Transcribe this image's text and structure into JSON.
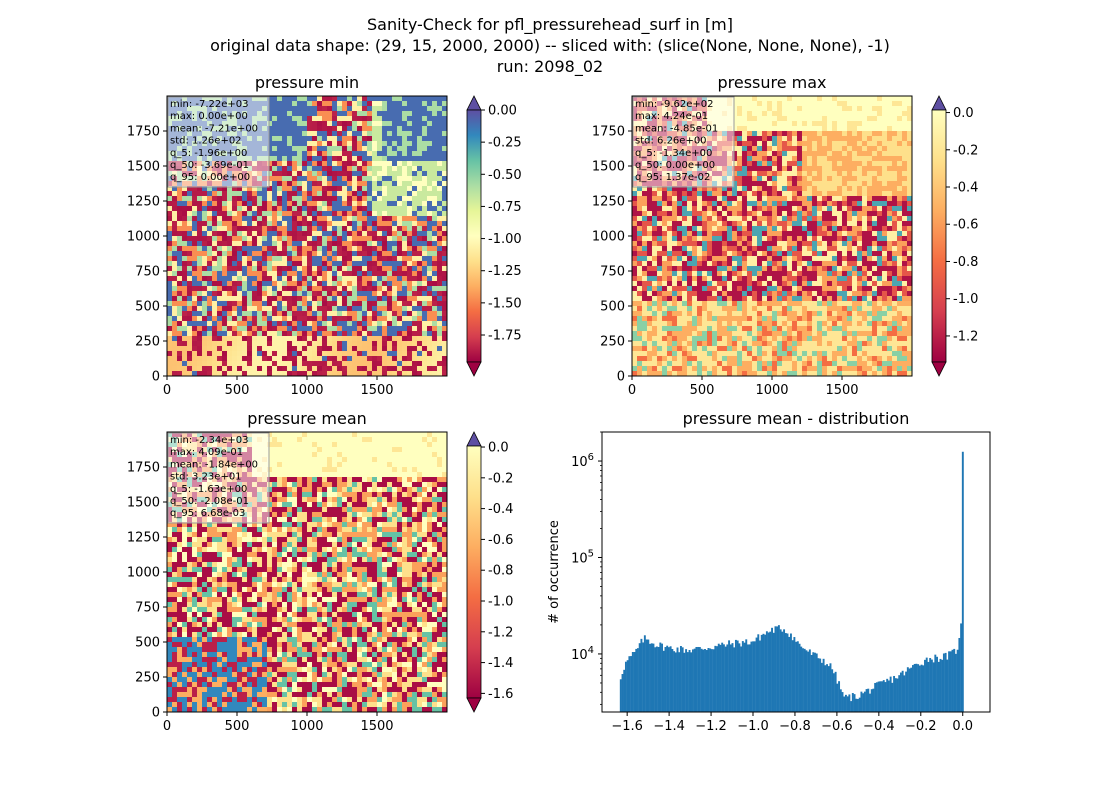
{
  "figure": {
    "title_lines": [
      "Sanity-Check for pfl_pressurehead_surf in [m]",
      "original data shape: (29, 15, 2000, 2000) -- sliced with: (slice(None, None, None), -1)",
      "run: 2098_02"
    ]
  },
  "chart_data": [
    {
      "type": "heatmap",
      "title": "pressure min",
      "xlim": [
        0,
        2000
      ],
      "ylim": [
        0,
        2000
      ],
      "xticks": [
        0,
        500,
        1000,
        1500
      ],
      "yticks": [
        0,
        250,
        500,
        750,
        1000,
        1250,
        1500,
        1750
      ],
      "colorbar": {
        "ticks": [
          "0.00",
          "-0.25",
          "-0.50",
          "-0.75",
          "-1.00",
          "-1.25",
          "-1.50",
          "-1.75"
        ],
        "range": [
          -1.96,
          0.0
        ],
        "extend": "both",
        "cmap": "Spectral"
      },
      "stats": [
        "min: -7.22e+03",
        "max: 0.00e+00",
        "mean: -7.21e+00",
        "std: 1.26e+02",
        "q_5: -1.96e+00",
        "q_50: -3.69e-01",
        "q_95: 0.00e+00"
      ]
    },
    {
      "type": "heatmap",
      "title": "pressure max",
      "xlim": [
        0,
        2000
      ],
      "ylim": [
        0,
        2000
      ],
      "xticks": [
        0,
        500,
        1000,
        1500
      ],
      "yticks": [
        0,
        250,
        500,
        750,
        1000,
        1250,
        1500,
        1750
      ],
      "colorbar": {
        "ticks": [
          "0.0",
          "-0.2",
          "-0.4",
          "-0.6",
          "-0.8",
          "-1.0",
          "-1.2"
        ],
        "range": [
          -1.34,
          0.0137
        ],
        "extend": "both",
        "cmap": "Spectral"
      },
      "stats": [
        "min: -9.62e+02",
        "max: 4.24e-01",
        "mean: -4.85e-01",
        "std: 6.26e+00",
        "q_5: -1.34e+00",
        "q_50: 0.00e+00",
        "q_95: 1.37e-02"
      ]
    },
    {
      "type": "heatmap",
      "title": "pressure mean",
      "xlim": [
        0,
        2000
      ],
      "ylim": [
        0,
        2000
      ],
      "xticks": [
        0,
        500,
        1000,
        1500
      ],
      "yticks": [
        0,
        250,
        500,
        750,
        1000,
        1250,
        1500,
        1750
      ],
      "colorbar": {
        "ticks": [
          "0.0",
          "-0.2",
          "-0.4",
          "-0.6",
          "-0.8",
          "-1.0",
          "-1.2",
          "-1.4",
          "-1.6"
        ],
        "range": [
          -1.63,
          0.00668
        ],
        "extend": "both",
        "cmap": "Spectral"
      },
      "stats": [
        "min: -2.34e+03",
        "max: 4.09e-01",
        "mean: -1.84e+00",
        "std: 3.23e+01",
        "q_5: -1.63e+00",
        "q_50: -2.08e-01",
        "q_95: 6.68e-03"
      ]
    },
    {
      "type": "bar",
      "title": "pressure mean - distribution",
      "ylabel": "# of occurrence",
      "xlabel": "",
      "yscale": "log",
      "xlim": [
        -1.72,
        0.13
      ],
      "ylim": [
        2500,
        2000000
      ],
      "xticks": [
        "-1.6",
        "-1.4",
        "-1.2",
        "-1.0",
        "-0.8",
        "-0.6",
        "-0.4",
        "-0.2",
        "0.0"
      ],
      "yticks": [
        "10^4",
        "10^5",
        "10^6"
      ],
      "color": "#1f77b4",
      "profile": [
        [
          -1.635,
          5300
        ],
        [
          -1.62,
          7000
        ],
        [
          -1.6,
          8500
        ],
        [
          -1.56,
          10500
        ],
        [
          -1.52,
          14500
        ],
        [
          -1.5,
          14000
        ],
        [
          -1.46,
          12500
        ],
        [
          -1.4,
          11500
        ],
        [
          -1.3,
          11000
        ],
        [
          -1.2,
          11800
        ],
        [
          -1.1,
          12800
        ],
        [
          -1.0,
          13500
        ],
        [
          -0.95,
          16000
        ],
        [
          -0.9,
          18000
        ],
        [
          -0.86,
          18500
        ],
        [
          -0.82,
          16000
        ],
        [
          -0.78,
          12500
        ],
        [
          -0.72,
          10000
        ],
        [
          -0.66,
          8500
        ],
        [
          -0.62,
          7000
        ],
        [
          -0.6,
          5500
        ],
        [
          -0.58,
          4200
        ],
        [
          -0.56,
          3500
        ],
        [
          -0.5,
          3700
        ],
        [
          -0.44,
          4300
        ],
        [
          -0.38,
          5000
        ],
        [
          -0.3,
          6000
        ],
        [
          -0.22,
          7800
        ],
        [
          -0.16,
          9000
        ],
        [
          -0.1,
          9200
        ],
        [
          -0.06,
          9800
        ],
        [
          -0.03,
          11000
        ],
        [
          -0.015,
          14000
        ],
        [
          -0.008,
          20000
        ],
        [
          -0.004,
          48000
        ],
        [
          0.0,
          1400000
        ],
        [
          0.004,
          1400000
        ]
      ]
    }
  ]
}
